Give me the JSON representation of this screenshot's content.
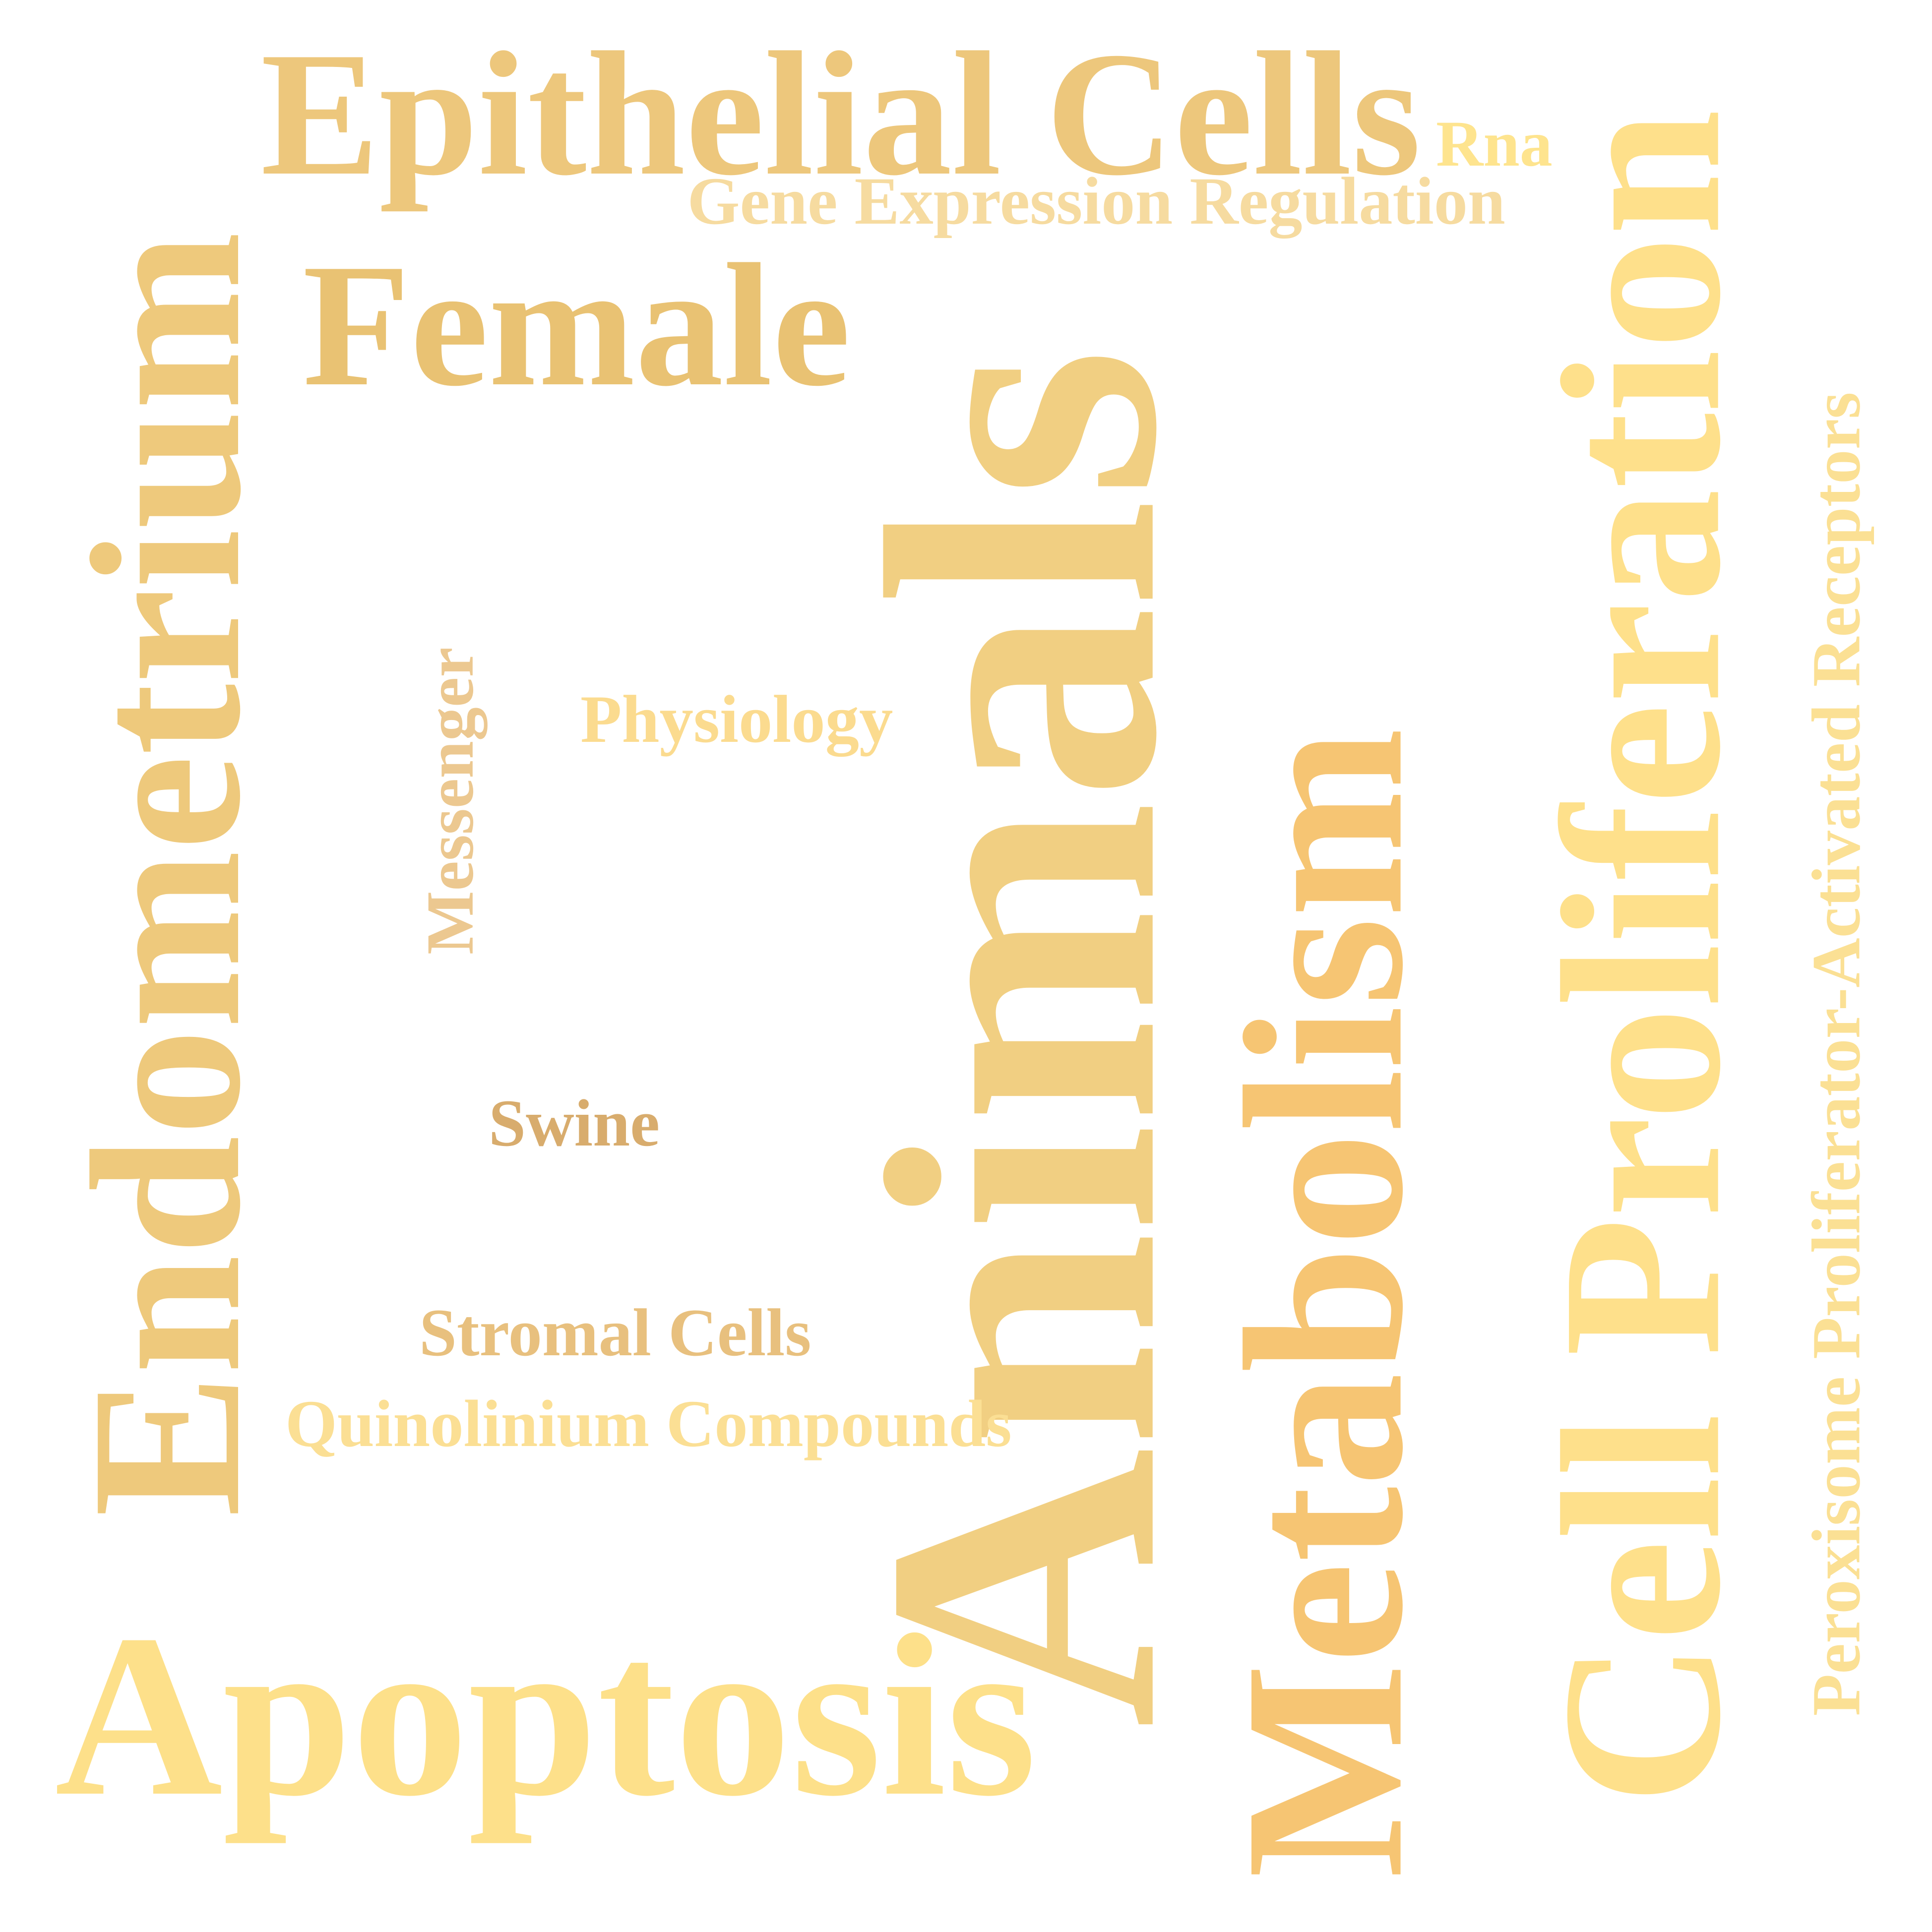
{
  "words": [
    {
      "id": "animals",
      "text": "Animals",
      "color": "#f1cf82"
    },
    {
      "id": "cell-prolif",
      "text": "Cell Proliferation",
      "color": "#fee08b"
    },
    {
      "id": "endometrium",
      "text": "Endometrium",
      "color": "#eec97c"
    },
    {
      "id": "metabolism",
      "text": "Metabolism",
      "color": "#f6c573"
    },
    {
      "id": "epithelial",
      "text": "Epithelial Cells",
      "color": "#edc77c"
    },
    {
      "id": "apoptosis",
      "text": "Apoptosis",
      "color": "#fde08a"
    },
    {
      "id": "female",
      "text": "Female",
      "color": "#e9c273"
    },
    {
      "id": "peroxisome",
      "text": "Peroxisome Proliferator-Activated Receptors",
      "color": "#fbe094"
    },
    {
      "id": "gene-expr",
      "text": "Gene Expression Regulation",
      "color": "#f6dba0"
    },
    {
      "id": "quinolinium",
      "text": "Quinolinium Compounds",
      "color": "#fbdf94"
    },
    {
      "id": "stromal",
      "text": "Stromal Cells",
      "color": "#e8c07e"
    },
    {
      "id": "physiology",
      "text": "Physiology",
      "color": "#fbdb8f"
    },
    {
      "id": "messenger",
      "text": "Messenger",
      "color": "#ecc890"
    },
    {
      "id": "swine",
      "text": "Swine",
      "color": "#d8ac6d"
    },
    {
      "id": "rna",
      "text": "Rna",
      "color": "#fee48e"
    }
  ]
}
